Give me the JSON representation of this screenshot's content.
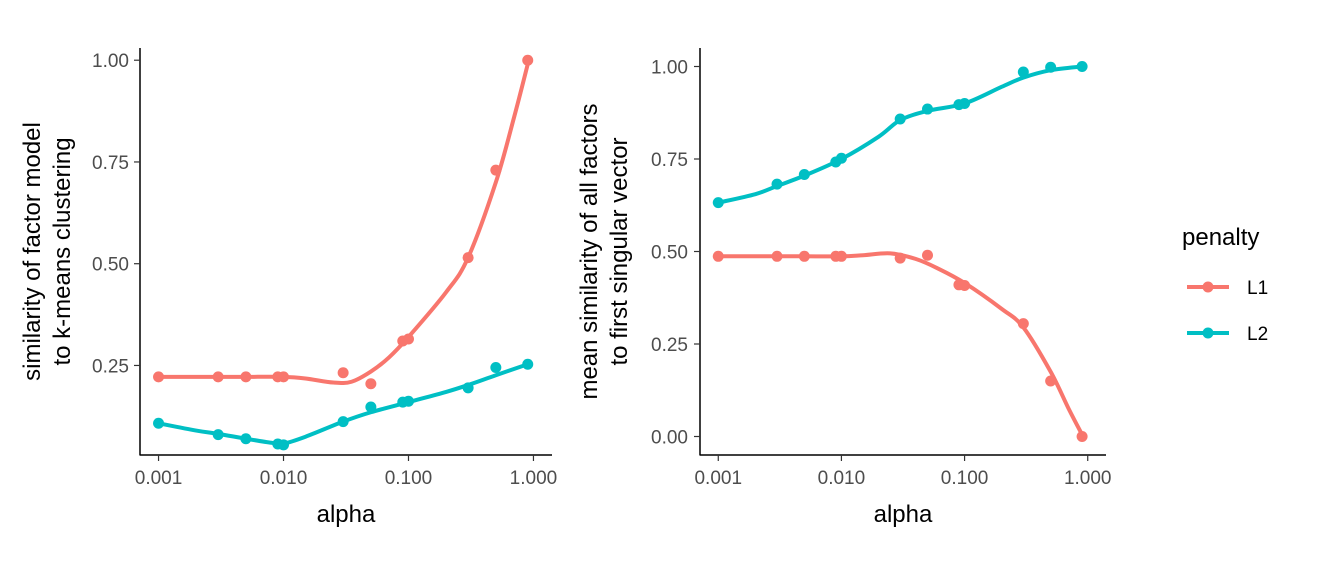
{
  "legend": {
    "title": "penalty",
    "items": [
      {
        "label": "L1",
        "color": "#F8766D"
      },
      {
        "label": "L2",
        "color": "#00BFC4"
      }
    ]
  },
  "chart_data": [
    {
      "type": "scatter",
      "x_scale": "log10",
      "xlabel": "alpha",
      "ylabel": [
        "similarity of factor model",
        "to k-means clustering"
      ],
      "xlim": [
        0.001,
        1.0
      ],
      "ylim": [
        0.03,
        1.03
      ],
      "x_ticks": [
        0.001,
        0.01,
        0.1,
        1.0
      ],
      "x_tick_labels": [
        "0.001",
        "0.010",
        "0.100",
        "1.000"
      ],
      "y_ticks": [
        0.25,
        0.5,
        0.75,
        1.0
      ],
      "y_tick_labels": [
        "0.25",
        "0.50",
        "0.75",
        "1.00"
      ],
      "series": [
        {
          "name": "L1",
          "color": "#F8766D",
          "points": [
            [
              0.001,
              0.222
            ],
            [
              0.003,
              0.222
            ],
            [
              0.005,
              0.222
            ],
            [
              0.009,
              0.222
            ],
            [
              0.01,
              0.222
            ],
            [
              0.03,
              0.232
            ],
            [
              0.05,
              0.205
            ],
            [
              0.09,
              0.31
            ],
            [
              0.1,
              0.315
            ],
            [
              0.3,
              0.515
            ],
            [
              0.5,
              0.73
            ],
            [
              0.9,
              1.0
            ]
          ],
          "smooth": [
            [
              0.001,
              0.222
            ],
            [
              0.003,
              0.222
            ],
            [
              0.005,
              0.222
            ],
            [
              0.01,
              0.222
            ],
            [
              0.015,
              0.218
            ],
            [
              0.025,
              0.208
            ],
            [
              0.035,
              0.21
            ],
            [
              0.05,
              0.235
            ],
            [
              0.07,
              0.27
            ],
            [
              0.1,
              0.32
            ],
            [
              0.2,
              0.43
            ],
            [
              0.3,
              0.515
            ],
            [
              0.5,
              0.7
            ],
            [
              0.7,
              0.86
            ],
            [
              0.9,
              0.99
            ]
          ]
        },
        {
          "name": "L2",
          "color": "#00BFC4",
          "points": [
            [
              0.001,
              0.108
            ],
            [
              0.003,
              0.08
            ],
            [
              0.005,
              0.07
            ],
            [
              0.009,
              0.057
            ],
            [
              0.01,
              0.055
            ],
            [
              0.03,
              0.112
            ],
            [
              0.05,
              0.148
            ],
            [
              0.09,
              0.16
            ],
            [
              0.1,
              0.162
            ],
            [
              0.3,
              0.195
            ],
            [
              0.5,
              0.245
            ],
            [
              0.9,
              0.253
            ]
          ],
          "smooth": [
            [
              0.001,
              0.108
            ],
            [
              0.002,
              0.09
            ],
            [
              0.003,
              0.082
            ],
            [
              0.005,
              0.07
            ],
            [
              0.008,
              0.06
            ],
            [
              0.01,
              0.058
            ],
            [
              0.015,
              0.075
            ],
            [
              0.03,
              0.112
            ],
            [
              0.05,
              0.135
            ],
            [
              0.1,
              0.16
            ],
            [
              0.2,
              0.185
            ],
            [
              0.3,
              0.202
            ],
            [
              0.5,
              0.226
            ],
            [
              0.9,
              0.253
            ]
          ]
        }
      ]
    },
    {
      "type": "scatter",
      "x_scale": "log10",
      "xlabel": "alpha",
      "ylabel": [
        "mean similarity of all factors",
        "to first singular vector"
      ],
      "xlim": [
        0.001,
        1.0
      ],
      "ylim": [
        -0.05,
        1.05
      ],
      "x_ticks": [
        0.001,
        0.01,
        0.1,
        1.0
      ],
      "x_tick_labels": [
        "0.001",
        "0.010",
        "0.100",
        "1.000"
      ],
      "y_ticks": [
        0.0,
        0.25,
        0.5,
        0.75,
        1.0
      ],
      "y_tick_labels": [
        "0.00",
        "0.25",
        "0.50",
        "0.75",
        "1.00"
      ],
      "series": [
        {
          "name": "L1",
          "color": "#F8766D",
          "points": [
            [
              0.001,
              0.487
            ],
            [
              0.003,
              0.487
            ],
            [
              0.005,
              0.487
            ],
            [
              0.009,
              0.487
            ],
            [
              0.01,
              0.487
            ],
            [
              0.03,
              0.482
            ],
            [
              0.05,
              0.49
            ],
            [
              0.09,
              0.41
            ],
            [
              0.1,
              0.408
            ],
            [
              0.3,
              0.305
            ],
            [
              0.5,
              0.15
            ],
            [
              0.9,
              0.0
            ]
          ],
          "smooth": [
            [
              0.001,
              0.487
            ],
            [
              0.003,
              0.487
            ],
            [
              0.005,
              0.487
            ],
            [
              0.01,
              0.487
            ],
            [
              0.015,
              0.49
            ],
            [
              0.025,
              0.495
            ],
            [
              0.04,
              0.48
            ],
            [
              0.06,
              0.455
            ],
            [
              0.1,
              0.415
            ],
            [
              0.2,
              0.345
            ],
            [
              0.3,
              0.295
            ],
            [
              0.5,
              0.175
            ],
            [
              0.7,
              0.075
            ],
            [
              0.9,
              0.005
            ]
          ]
        },
        {
          "name": "L2",
          "color": "#00BFC4",
          "points": [
            [
              0.001,
              0.632
            ],
            [
              0.003,
              0.682
            ],
            [
              0.005,
              0.708
            ],
            [
              0.009,
              0.742
            ],
            [
              0.01,
              0.752
            ],
            [
              0.03,
              0.858
            ],
            [
              0.05,
              0.885
            ],
            [
              0.09,
              0.897
            ],
            [
              0.1,
              0.9
            ],
            [
              0.3,
              0.985
            ],
            [
              0.5,
              0.998
            ],
            [
              0.9,
              1.0
            ]
          ],
          "smooth": [
            [
              0.001,
              0.632
            ],
            [
              0.002,
              0.655
            ],
            [
              0.003,
              0.677
            ],
            [
              0.005,
              0.705
            ],
            [
              0.01,
              0.75
            ],
            [
              0.02,
              0.81
            ],
            [
              0.03,
              0.855
            ],
            [
              0.05,
              0.88
            ],
            [
              0.1,
              0.9
            ],
            [
              0.2,
              0.945
            ],
            [
              0.3,
              0.97
            ],
            [
              0.5,
              0.99
            ],
            [
              0.9,
              1.0
            ]
          ]
        }
      ]
    }
  ]
}
